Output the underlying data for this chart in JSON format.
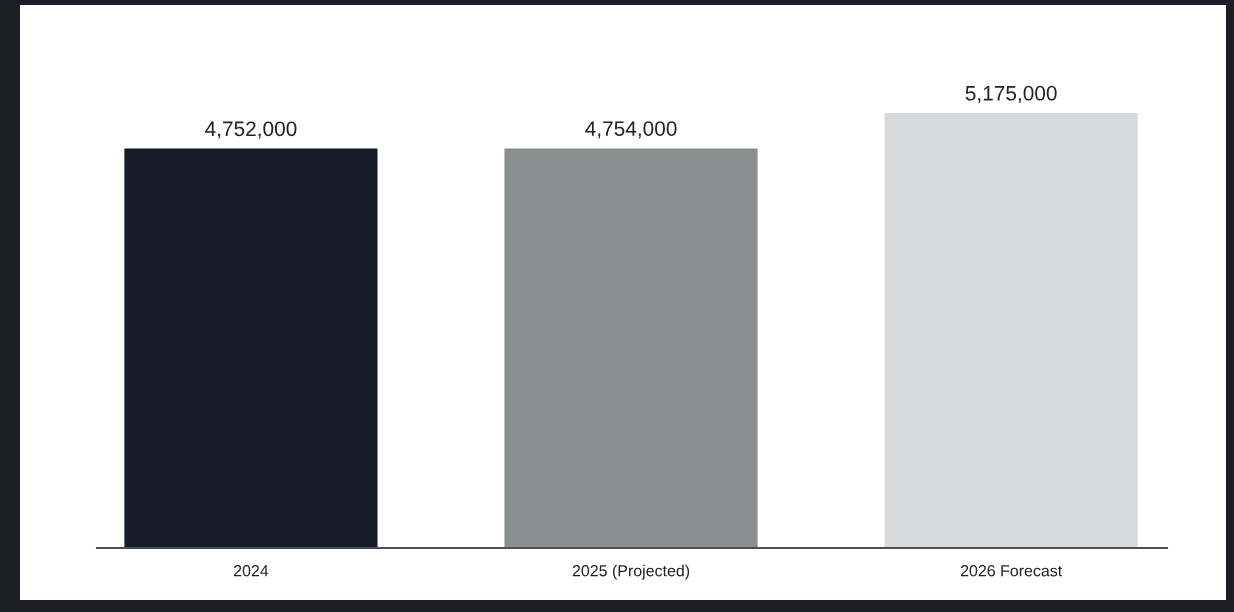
{
  "chart_data": {
    "type": "bar",
    "categories": [
      "2024",
      "2025 (Projected)",
      "2026 Forecast"
    ],
    "values": [
      4752000,
      4754000,
      5175000
    ],
    "colors": [
      "#161b28",
      "#8a8e8f",
      "#d8d9db"
    ],
    "value_labels": [
      "4,752,000",
      "4,754,000",
      "5,175,000"
    ]
  }
}
